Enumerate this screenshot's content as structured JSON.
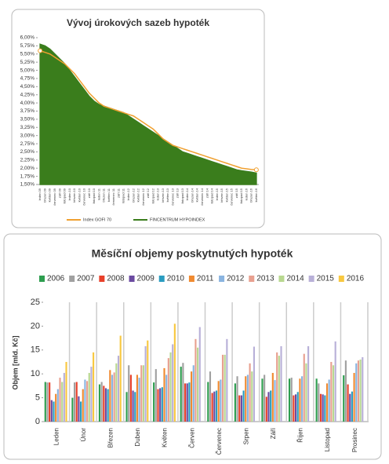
{
  "chart_data": [
    {
      "type": "line",
      "title": "Vývoj úrokových sazeb hypoték",
      "categories": [
        "leden 09",
        "březen 09",
        "květen 09",
        "červenec 09",
        "září 09",
        "listopad 09",
        "leden 10",
        "březen 10",
        "květen 10",
        "červenec 10",
        "září 10",
        "listopad 10",
        "leden 11",
        "březen 11",
        "květen 11",
        "červenec 11",
        "září 11",
        "listopad 11",
        "leden 12",
        "březen 12",
        "květen 12",
        "červenec 12",
        "září 12",
        "listopad 12",
        "leden 13",
        "březen 13",
        "květen 13",
        "červenec 13",
        "září 13",
        "listopad 13",
        "leden 14",
        "březen 14",
        "květen 14",
        "červenec 14",
        "září 14",
        "listopad 14",
        "leden 15",
        "březen 15",
        "květen 15",
        "červenec 15",
        "září 15",
        "listopad 15",
        "leden 16",
        "březen 16",
        "květen 16"
      ],
      "series": [
        {
          "name": "FINCENTRUM HYPOINDEX",
          "color": "#3a7d1c",
          "area": true,
          "values": [
            5.8,
            5.75,
            5.65,
            5.5,
            5.35,
            5.2,
            5.0,
            4.8,
            4.6,
            4.4,
            4.2,
            4.05,
            3.95,
            3.9,
            3.85,
            3.8,
            3.75,
            3.7,
            3.6,
            3.5,
            3.4,
            3.3,
            3.2,
            3.1,
            3.0,
            2.9,
            2.8,
            2.7,
            2.6,
            2.5,
            2.45,
            2.4,
            2.35,
            2.3,
            2.25,
            2.2,
            2.15,
            2.1,
            2.05,
            2.0,
            1.95,
            1.92,
            1.9,
            1.88,
            1.85
          ]
        },
        {
          "name": "Index GOFI 70",
          "color": "#f0a030",
          "area": false,
          "values": [
            5.6,
            5.55,
            5.5,
            5.4,
            5.3,
            5.2,
            5.05,
            4.9,
            4.7,
            4.5,
            4.3,
            4.15,
            4.0,
            3.9,
            3.85,
            3.8,
            3.75,
            3.7,
            3.65,
            3.6,
            3.5,
            3.4,
            3.3,
            3.2,
            3.05,
            2.9,
            2.8,
            2.7,
            2.65,
            2.6,
            2.55,
            2.5,
            2.45,
            2.4,
            2.35,
            2.3,
            2.25,
            2.2,
            2.15,
            2.1,
            2.05,
            2.0,
            1.98,
            1.96,
            1.95
          ]
        }
      ],
      "ylim": [
        1.5,
        6.0
      ],
      "yticks": [
        {
          "value": 1.5,
          "label": "1,50%"
        },
        {
          "value": 1.75,
          "label": "1,75%"
        },
        {
          "value": 2.0,
          "label": "2,00%"
        },
        {
          "value": 2.25,
          "label": "2,25%"
        },
        {
          "value": 2.5,
          "label": "2,50%"
        },
        {
          "value": 2.75,
          "label": "2,75%"
        },
        {
          "value": 3.0,
          "label": "3,00%"
        },
        {
          "value": 3.25,
          "label": "3,25%"
        },
        {
          "value": 3.5,
          "label": "3,50%"
        },
        {
          "value": 3.75,
          "label": "3,75%"
        },
        {
          "value": 4.0,
          "label": "4,00%"
        },
        {
          "value": 4.25,
          "label": "4,25%"
        },
        {
          "value": 4.5,
          "label": "4,50%"
        },
        {
          "value": 4.75,
          "label": "4,75%"
        },
        {
          "value": 5.0,
          "label": "5,00%"
        },
        {
          "value": 5.25,
          "label": "5,25%"
        },
        {
          "value": 5.5,
          "label": "5,50%"
        },
        {
          "value": 5.75,
          "label": "5,75%"
        },
        {
          "value": 6.0,
          "label": "6,00%"
        }
      ],
      "grid": false
    },
    {
      "type": "bar",
      "title": "Měsíční objemy poskytnutých hypoték",
      "y_label": "Objem [mld. Kč]",
      "categories": [
        "Leden",
        "Únor",
        "Březen",
        "Duben",
        "Květen",
        "Červen",
        "Červenec",
        "Srpen",
        "Září",
        "Říjen",
        "Listopad",
        "Prosinec"
      ],
      "series": [
        {
          "name": "2006",
          "color": "#2e9e4f",
          "values": [
            8.3,
            5,
            7.8,
            6.2,
            8.2,
            11.5,
            8.3,
            8,
            9,
            9,
            9,
            9.7
          ]
        },
        {
          "name": "2007",
          "color": "#a0a0a0",
          "values": [
            8.2,
            8.2,
            8.3,
            11.8,
            11,
            12.3,
            10.5,
            9.5,
            9.8,
            9.2,
            8,
            12.8
          ]
        },
        {
          "name": "2008",
          "color": "#e8402a",
          "values": [
            8.2,
            8.3,
            7.5,
            9.8,
            6.8,
            8,
            6,
            5.5,
            5.2,
            5.5,
            5.8,
            7.8
          ]
        },
        {
          "name": "2009",
          "color": "#6b4aa0",
          "values": [
            4.5,
            5.3,
            7,
            6.5,
            7,
            8,
            6.3,
            5.5,
            6.2,
            5.7,
            5.7,
            5.8
          ]
        },
        {
          "name": "2010",
          "color": "#2a9cc0",
          "values": [
            4.2,
            4.2,
            6.8,
            6.2,
            7.2,
            8.2,
            6.5,
            6.5,
            6.5,
            6.2,
            5.5,
            6.3
          ]
        },
        {
          "name": "2011",
          "color": "#f08a30",
          "values": [
            5.8,
            6.8,
            10.8,
            9.8,
            11.2,
            10.5,
            8.5,
            9.5,
            10.2,
            9,
            8,
            10.2
          ]
        },
        {
          "name": "2012",
          "color": "#8ab4e0",
          "values": [
            6.8,
            8.8,
            9.8,
            9.2,
            9.8,
            11.8,
            8.8,
            9.8,
            8.7,
            9.5,
            8.8,
            12.2
          ]
        },
        {
          "name": "2013",
          "color": "#e8a090",
          "values": [
            9.2,
            8.5,
            10.3,
            11.8,
            13.3,
            17.3,
            14,
            12.2,
            14.5,
            14.2,
            12.5,
            12.8
          ]
        },
        {
          "name": "2014",
          "color": "#b8d890",
          "values": [
            8.3,
            10.2,
            12.2,
            11.8,
            14.5,
            15.5,
            14,
            10.5,
            13.8,
            12.2,
            11.8,
            13
          ]
        },
        {
          "name": "2015",
          "color": "#b8b0d8",
          "values": [
            10.2,
            11.5,
            13.8,
            15.8,
            16.2,
            19.8,
            17.3,
            15.7,
            15.8,
            15.8,
            16.8,
            13.5
          ]
        },
        {
          "name": "2016",
          "color": "#f8c840",
          "values": [
            12.5,
            14.5,
            18,
            17,
            20.5,
            null,
            null,
            null,
            null,
            null,
            null,
            null
          ]
        }
      ],
      "ylim": [
        0,
        25
      ],
      "yticks": [
        0,
        5,
        10,
        15,
        20,
        25
      ],
      "grid": false
    }
  ]
}
